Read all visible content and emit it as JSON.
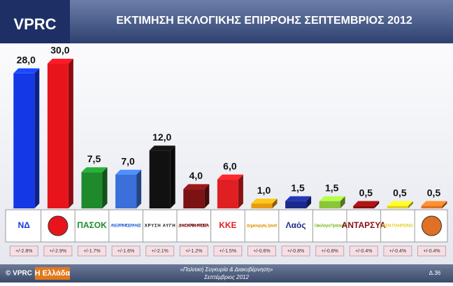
{
  "header": {
    "logo": "VPRC"
  },
  "chart_data": {
    "type": "bar3d",
    "title": "ΕΚΤΙΜΗΣΗ ΕΚΛΟΓΙΚΗΣ ΕΠΙΡΡΟΗΣ ΣΕΠΤΕΜΒΡΙΟΣ 2012",
    "categories": [
      "ΝΔ",
      null,
      "ΠΑΣΟΚ",
      "ΑΝΕΞΑΡΤΗΤΟΙ ΕΛΛΗΝΕΣ",
      "ΧΡΥΣΗ ΑΥΓΗ",
      "ΔΗΜΟΚΡΑΤΙΚΗ ΑΡΙΣΤΕΡΑ",
      "ΚΚΕ",
      "Δημιουργία, ξανά!",
      "Λαός",
      "Οικολόγοι Πράσινοι",
      "ΑΝΤΑΡΣΥΑ",
      "ΔΕΝ ΠΛΗΡΩΝΩ",
      null
    ],
    "values": [
      28.0,
      30.0,
      7.5,
      7.0,
      12.0,
      4.0,
      6.0,
      1.0,
      1.5,
      1.5,
      0.5,
      0.5,
      0.5
    ],
    "value_labels": [
      "28,0",
      "30,0",
      "7,5",
      "7,0",
      "12,0",
      "4,0",
      "6,0",
      "1,0",
      "1,5",
      "1,5",
      "0,5",
      "0,5",
      "0,5"
    ],
    "errors": [
      2.8,
      2.9,
      1.7,
      1.6,
      2.1,
      1.2,
      1.5,
      0.6,
      0.8,
      0.8,
      0.4,
      0.4,
      0.4
    ],
    "error_labels": [
      "+/-2.8%",
      "+/-2.9%",
      "+/-1.7%",
      "+/-1.6%",
      "+/-2.1%",
      "+/-1.2%",
      "+/-1.5%",
      "+/-0.6%",
      "+/-0.8%",
      "+/-0.8%",
      "+/-0.4%",
      "+/-0.4%",
      "+/-0.4%"
    ],
    "colors": [
      "#1438e6",
      "#e8141c",
      "#1e8a2c",
      "#3b6fda",
      "#111111",
      "#7c1212",
      "#e01f22",
      "#e69a12",
      "#1a2a8c",
      "#8cc43a",
      "#8a1010",
      "#e6cf22",
      "#e07024"
    ]
  },
  "footer": {
    "copyright": "© VPRC",
    "brand": "Η Ελλάδα",
    "series_title": "«Πολιτική Συγκυρία & Διακυβέρνηση»",
    "date": "Σεπτέμβριος 2012",
    "page": "Δ.36"
  }
}
